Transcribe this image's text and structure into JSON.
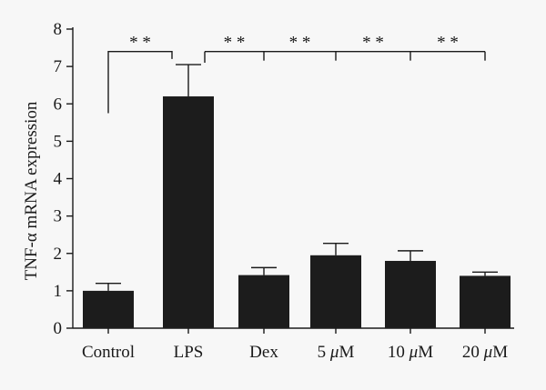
{
  "chart_data": {
    "type": "bar",
    "categories": [
      "Control",
      "LPS",
      "Dex",
      "5 μM",
      "10 μM",
      "20 μM"
    ],
    "values": [
      1.0,
      6.2,
      1.42,
      1.95,
      1.8,
      1.4
    ],
    "errors": [
      0.2,
      0.85,
      0.2,
      0.32,
      0.27,
      0.1
    ],
    "xlabel": "",
    "ylabel": "TNF-α mRNA expression",
    "ylim": [
      0,
      8
    ],
    "yticks": [
      0,
      1,
      2,
      3,
      4,
      5,
      6,
      7,
      8
    ],
    "grid": false,
    "bar_color": "#1c1c1c",
    "annotations": [
      {
        "from": "Control",
        "to": "LPS",
        "label": "* *"
      },
      {
        "from": "LPS",
        "to": "Dex",
        "label": "* *"
      },
      {
        "from": "LPS",
        "to": "5 μM",
        "label": "* *"
      },
      {
        "from": "LPS",
        "to": "10 μM",
        "label": "* *"
      },
      {
        "from": "LPS",
        "to": "20 μM",
        "label": "* *"
      }
    ]
  }
}
